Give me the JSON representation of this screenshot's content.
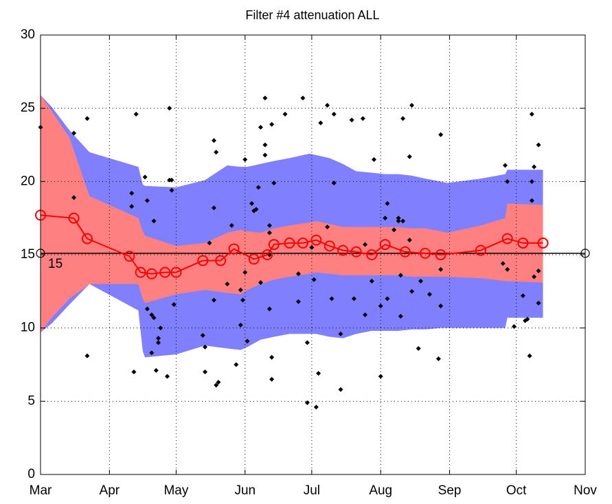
{
  "chart_data": {
    "type": "band-scatter",
    "title": "Filter #4 attenuation ALL",
    "xlim": [
      0,
      245
    ],
    "ylim": [
      0,
      30
    ],
    "xticks": [
      {
        "value": 0,
        "label": "Mar"
      },
      {
        "value": 31,
        "label": "Apr"
      },
      {
        "value": 61,
        "label": "May"
      },
      {
        "value": 92,
        "label": "Jun"
      },
      {
        "value": 122,
        "label": "Jul"
      },
      {
        "value": 153,
        "label": "Aug"
      },
      {
        "value": 184,
        "label": "Sep"
      },
      {
        "value": 214,
        "label": "Oct"
      },
      {
        "value": 245,
        "label": "Nov"
      }
    ],
    "yticks": [
      0,
      5,
      10,
      15,
      20,
      25,
      30
    ],
    "grid": true,
    "bands": [
      {
        "color": "#8080ff",
        "x": [
          0,
          5,
          13,
          22,
          44,
          46,
          47,
          61,
          74,
          84,
          90,
          93,
          99,
          105,
          112,
          121,
          124,
          130,
          136,
          142,
          149,
          155,
          161,
          167,
          173,
          180,
          183,
          198,
          209,
          210,
          226
        ],
        "upper": [
          25.9,
          25.1,
          23.5,
          22.0,
          21.0,
          19.8,
          19.7,
          19.6,
          20.1,
          21.1,
          21.0,
          21.0,
          21.2,
          21.4,
          21.6,
          21.9,
          21.8,
          21.6,
          21.2,
          20.7,
          20.6,
          20.5,
          20.5,
          20.4,
          20.2,
          20.0,
          19.9,
          20.2,
          20.5,
          20.8,
          20.8
        ],
        "lower": [
          9.7,
          10.3,
          11.6,
          13.0,
          11.2,
          8.4,
          8.0,
          8.2,
          8.8,
          8.6,
          8.5,
          8.7,
          9.2,
          9.4,
          9.6,
          9.6,
          9.6,
          9.4,
          9.3,
          9.6,
          9.8,
          9.8,
          9.8,
          9.9,
          9.9,
          10.0,
          10.0,
          10.0,
          10.0,
          10.7,
          10.7
        ]
      },
      {
        "color": "#ff8080",
        "x": [
          0,
          5,
          13,
          22,
          44,
          46,
          47,
          61,
          74,
          84,
          90,
          93,
          99,
          105,
          112,
          121,
          124,
          130,
          136,
          142,
          149,
          155,
          161,
          167,
          173,
          180,
          183,
          198,
          209,
          210,
          226
        ],
        "upper": [
          25.9,
          24.8,
          23.0,
          19.0,
          17.5,
          16.6,
          16.3,
          15.6,
          15.8,
          16.5,
          16.7,
          16.6,
          16.5,
          16.8,
          17.0,
          17.2,
          17.3,
          17.1,
          16.9,
          16.9,
          16.9,
          16.9,
          16.9,
          16.8,
          16.8,
          16.6,
          16.5,
          17.0,
          17.5,
          18.5,
          18.4
        ],
        "lower": [
          9.7,
          10.7,
          12.0,
          13.0,
          13.0,
          12.0,
          11.7,
          12.3,
          12.6,
          12.4,
          12.3,
          12.6,
          13.0,
          13.3,
          13.5,
          13.7,
          13.8,
          13.7,
          13.6,
          13.6,
          13.6,
          13.6,
          13.6,
          13.5,
          13.5,
          13.5,
          13.5,
          13.4,
          13.2,
          13.2,
          13.1
        ]
      }
    ],
    "line": {
      "color": "#ff0000",
      "x": [
        0,
        15,
        21,
        40,
        45,
        50,
        56,
        61,
        73,
        81,
        87,
        96,
        102,
        105,
        112,
        118,
        124,
        130,
        136,
        142,
        149,
        155,
        164,
        173,
        180,
        198,
        210,
        217,
        226
      ],
      "values": [
        17.7,
        17.5,
        16.1,
        14.9,
        13.8,
        13.7,
        13.8,
        13.8,
        14.6,
        14.6,
        15.4,
        14.7,
        15.0,
        15.7,
        15.8,
        15.8,
        16.0,
        15.6,
        15.3,
        15.2,
        15.0,
        15.7,
        15.2,
        15.1,
        15.0,
        15.3,
        16.1,
        15.8,
        15.8
      ]
    },
    "points": {
      "color": "#000000",
      "x": [
        0,
        15,
        15,
        21,
        21,
        43,
        41,
        41,
        42,
        47,
        48,
        51,
        48,
        50,
        51,
        54,
        53,
        53,
        50,
        52,
        57,
        58,
        58,
        59,
        59,
        60,
        78,
        79,
        78,
        73,
        74,
        74,
        79,
        80,
        78,
        76,
        84,
        86,
        88,
        90,
        93,
        92,
        95,
        97,
        96,
        90,
        91,
        92,
        99,
        101,
        101,
        101,
        104,
        105,
        98,
        103,
        103,
        103,
        99,
        103,
        104,
        104,
        110,
        118,
        116,
        116,
        120,
        120,
        124,
        125,
        123,
        122,
        126,
        129,
        132,
        132,
        129,
        131,
        135,
        135,
        141,
        140,
        145,
        146,
        146,
        150,
        149,
        153,
        153,
        156,
        155,
        156,
        162,
        159,
        161,
        161,
        163,
        163,
        167,
        166,
        162,
        167,
        171,
        170,
        166,
        175,
        179,
        180,
        180,
        180,
        209,
        210,
        208,
        210,
        213,
        217,
        218,
        219,
        220,
        221,
        222,
        221,
        221,
        224,
        224,
        222,
        224
      ],
      "values": [
        23.7,
        23.3,
        18.9,
        24.3,
        8.1,
        24.6,
        19.2,
        18.3,
        7.0,
        20.3,
        18.7,
        17.3,
        11.3,
        10.9,
        10.7,
        10.0,
        9.3,
        9.0,
        8.3,
        7.1,
        6.7,
        25.0,
        20.1,
        20.1,
        19.4,
        11.6,
        22.8,
        22.0,
        18.2,
        9.5,
        8.7,
        7.0,
        6.1,
        6.3,
        11.9,
        15.8,
        13.0,
        17.0,
        7.5,
        10.2,
        9.1,
        21.5,
        18.5,
        18.1,
        18.0,
        12.6,
        11.9,
        13.8,
        23.7,
        25.7,
        22.5,
        21.8,
        23.9,
        19.9,
        19.6,
        15.0,
        17.0,
        16.5,
        13.1,
        11.3,
        8.0,
        6.5,
        24.6,
        25.7,
        11.8,
        13.7,
        9.0,
        4.9,
        4.6,
        6.9,
        13.3,
        15.5,
        24.0,
        25.2,
        24.6,
        19.9,
        16.9,
        12.0,
        9.6,
        5.8,
        12.0,
        24.2,
        24.3,
        10.9,
        15.7,
        21.5,
        13.2,
        6.7,
        11.5,
        12.0,
        17.5,
        18.5,
        10.8,
        16.7,
        17.5,
        17.3,
        17.3,
        24.3,
        25.2,
        21.7,
        13.6,
        12.5,
        13.2,
        8.6,
        16.0,
        12.3,
        7.9,
        11.5,
        23.2,
        14.0,
        21.1,
        20.0,
        14.4,
        14.0,
        10.1,
        12.2,
        10.5,
        10.6,
        8.1,
        24.6,
        21.0,
        20.0,
        18.7,
        22.5,
        13.9,
        13.5,
        11.7
      ]
    },
    "reference": {
      "value": 15.1,
      "label": "15",
      "color": "#000000"
    }
  }
}
